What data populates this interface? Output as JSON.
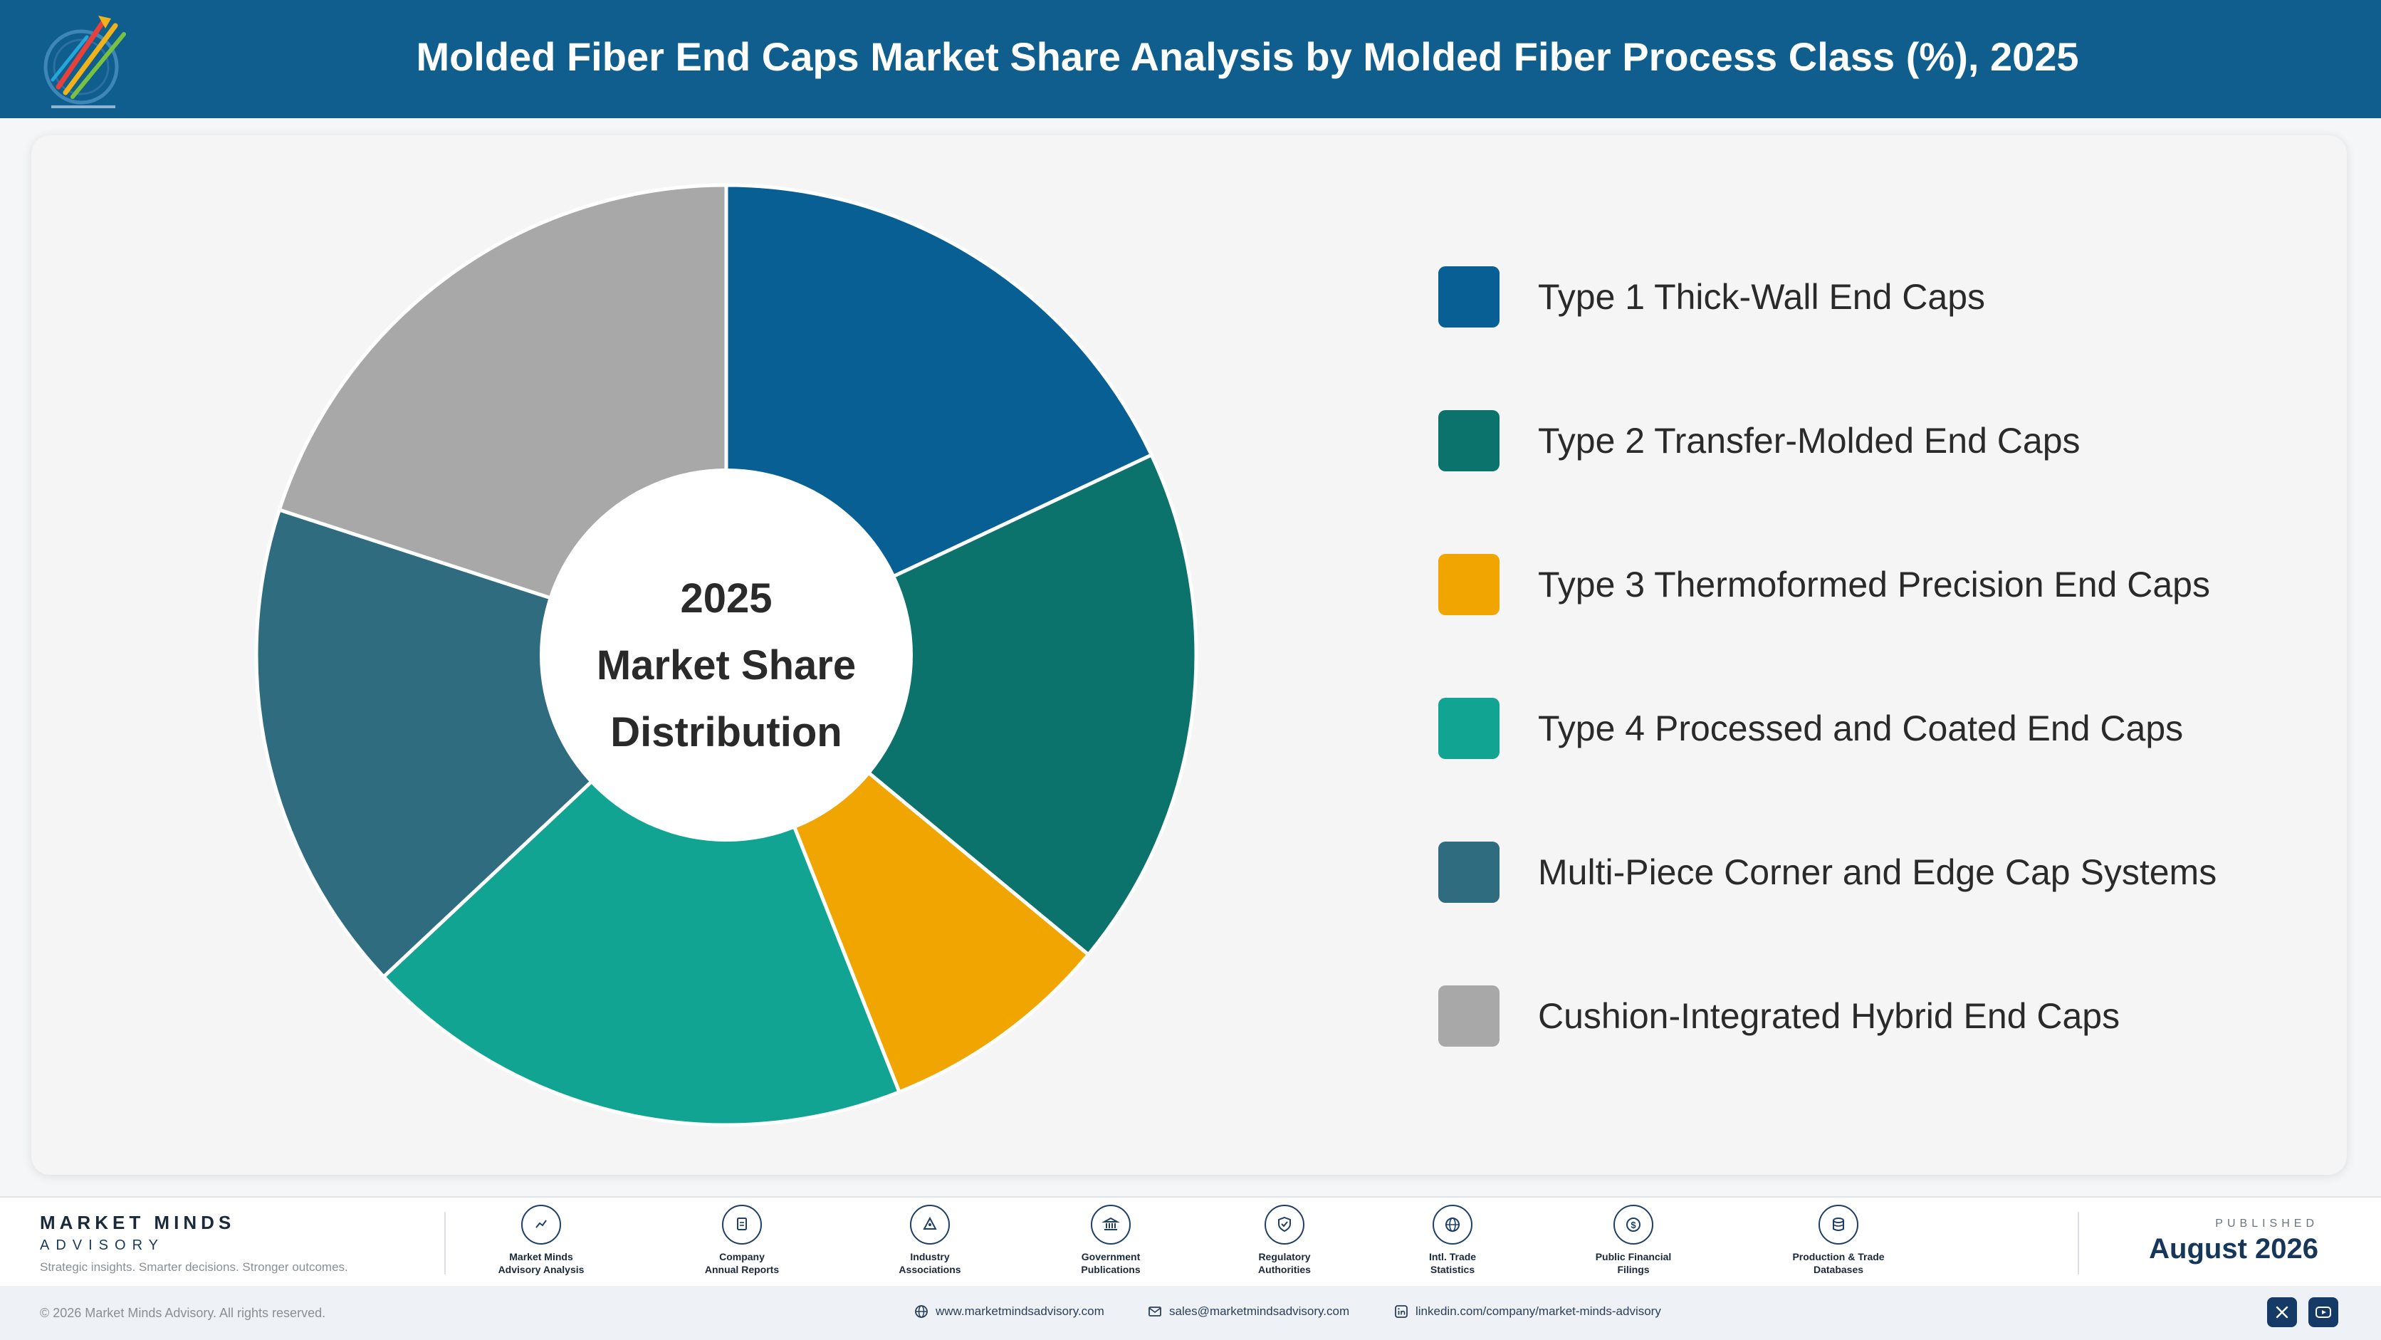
{
  "header": {
    "title": "Molded Fiber End Caps Market Share Analysis by Molded Fiber Process Class (%), 2025"
  },
  "center_label": {
    "line1": "2025",
    "line2": "Market Share",
    "line3": "Distribution"
  },
  "chart_data": {
    "type": "pie",
    "title": "Molded Fiber End Caps Market Share Analysis by Molded Fiber Process Class (%), 2025",
    "donut": true,
    "legend_position": "right",
    "categories": [
      "Type 1 Thick-Wall End Caps",
      "Type 2 Transfer-Molded End Caps",
      "Type 3 Thermoformed Precision End Caps",
      "Type 4 Processed and Coated End Caps",
      "Multi-Piece Corner and Edge Cap Systems",
      "Cushion-Integrated Hybrid End Caps"
    ],
    "values": [
      18,
      18,
      8,
      19,
      17,
      20
    ],
    "colors": [
      "#075f94",
      "#0c736c",
      "#f0a500",
      "#12a493",
      "#2f6c80",
      "#a8a8a8"
    ]
  },
  "footer": {
    "brand_name": "MARKET MINDS",
    "brand_sub": "ADVISORY",
    "tagline": "Strategic insights. Smarter decisions. Stronger outcomes.",
    "sources": [
      {
        "icon": "trend-chart-icon",
        "line1": "Market Minds",
        "line2": "Advisory Analysis"
      },
      {
        "icon": "document-icon",
        "line1": "Company",
        "line2": "Annual Reports"
      },
      {
        "icon": "network-icon",
        "line1": "Industry",
        "line2": "Associations"
      },
      {
        "icon": "government-building-icon",
        "line1": "Government",
        "line2": "Publications"
      },
      {
        "icon": "shield-check-icon",
        "line1": "Regulatory",
        "line2": "Authorities"
      },
      {
        "icon": "globe-icon",
        "line1": "Intl. Trade",
        "line2": "Statistics"
      },
      {
        "icon": "dollar-coin-icon",
        "line1": "Public Financial",
        "line2": "Filings"
      },
      {
        "icon": "database-icon",
        "line1": "Production & Trade",
        "line2": "Databases"
      }
    ],
    "published_label": "PUBLISHED",
    "published_date": "August 2026"
  },
  "bottom_bar": {
    "copyright": "© 2026 Market Minds Advisory. All rights reserved.",
    "website": "www.marketmindsadvisory.com",
    "email": "sales@marketmindsadvisory.com",
    "linkedin": "linkedin.com/company/market-minds-advisory"
  }
}
